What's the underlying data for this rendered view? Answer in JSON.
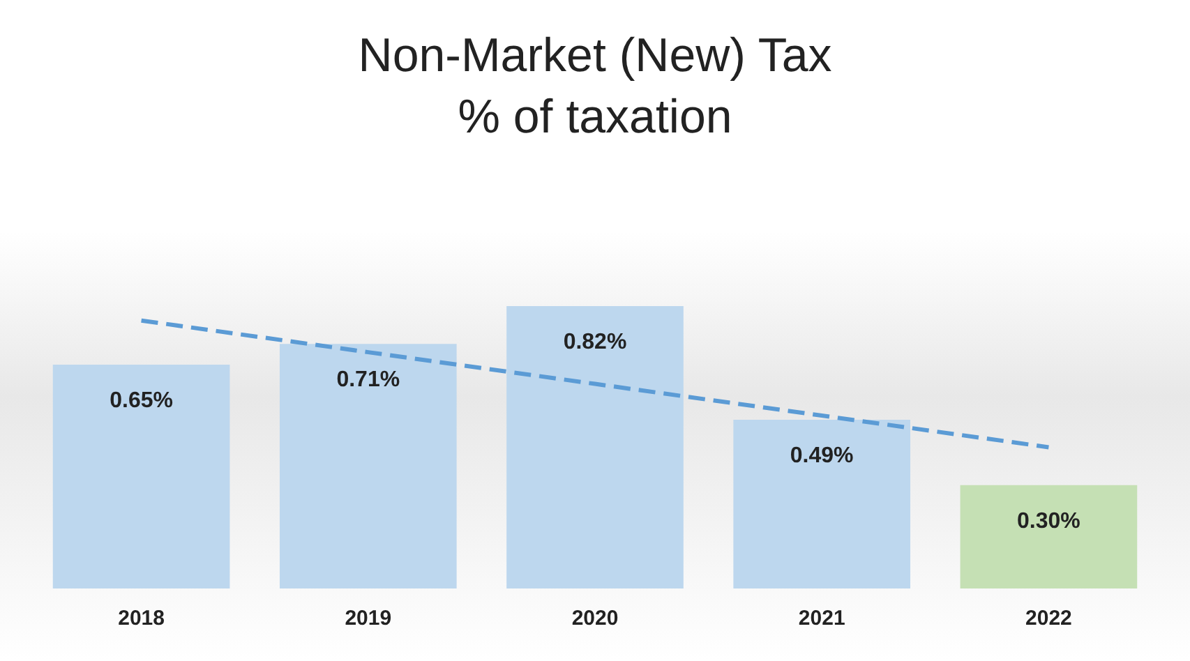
{
  "chart_data": {
    "type": "bar",
    "title": "Non-Market (New) Tax",
    "subtitle": "% of taxation",
    "categories": [
      "2018",
      "2019",
      "2020",
      "2021",
      "2022"
    ],
    "series": [
      {
        "values": [
          0.65,
          0.71,
          0.82,
          0.49,
          0.3
        ],
        "colors": [
          "#bdd7ee",
          "#bdd7ee",
          "#bdd7ee",
          "#bdd7ee",
          "#c5e0b4"
        ],
        "value_labels": [
          "0.65%",
          "0.71%",
          "0.82%",
          "0.49%",
          "0.30%"
        ]
      },
      {
        "type": "line",
        "values": [
          0.778,
          0.686,
          0.594,
          0.502,
          0.41
        ],
        "color": "#5b9bd5",
        "line_style": "dashed",
        "marker": "none"
      }
    ],
    "grid": false
  }
}
